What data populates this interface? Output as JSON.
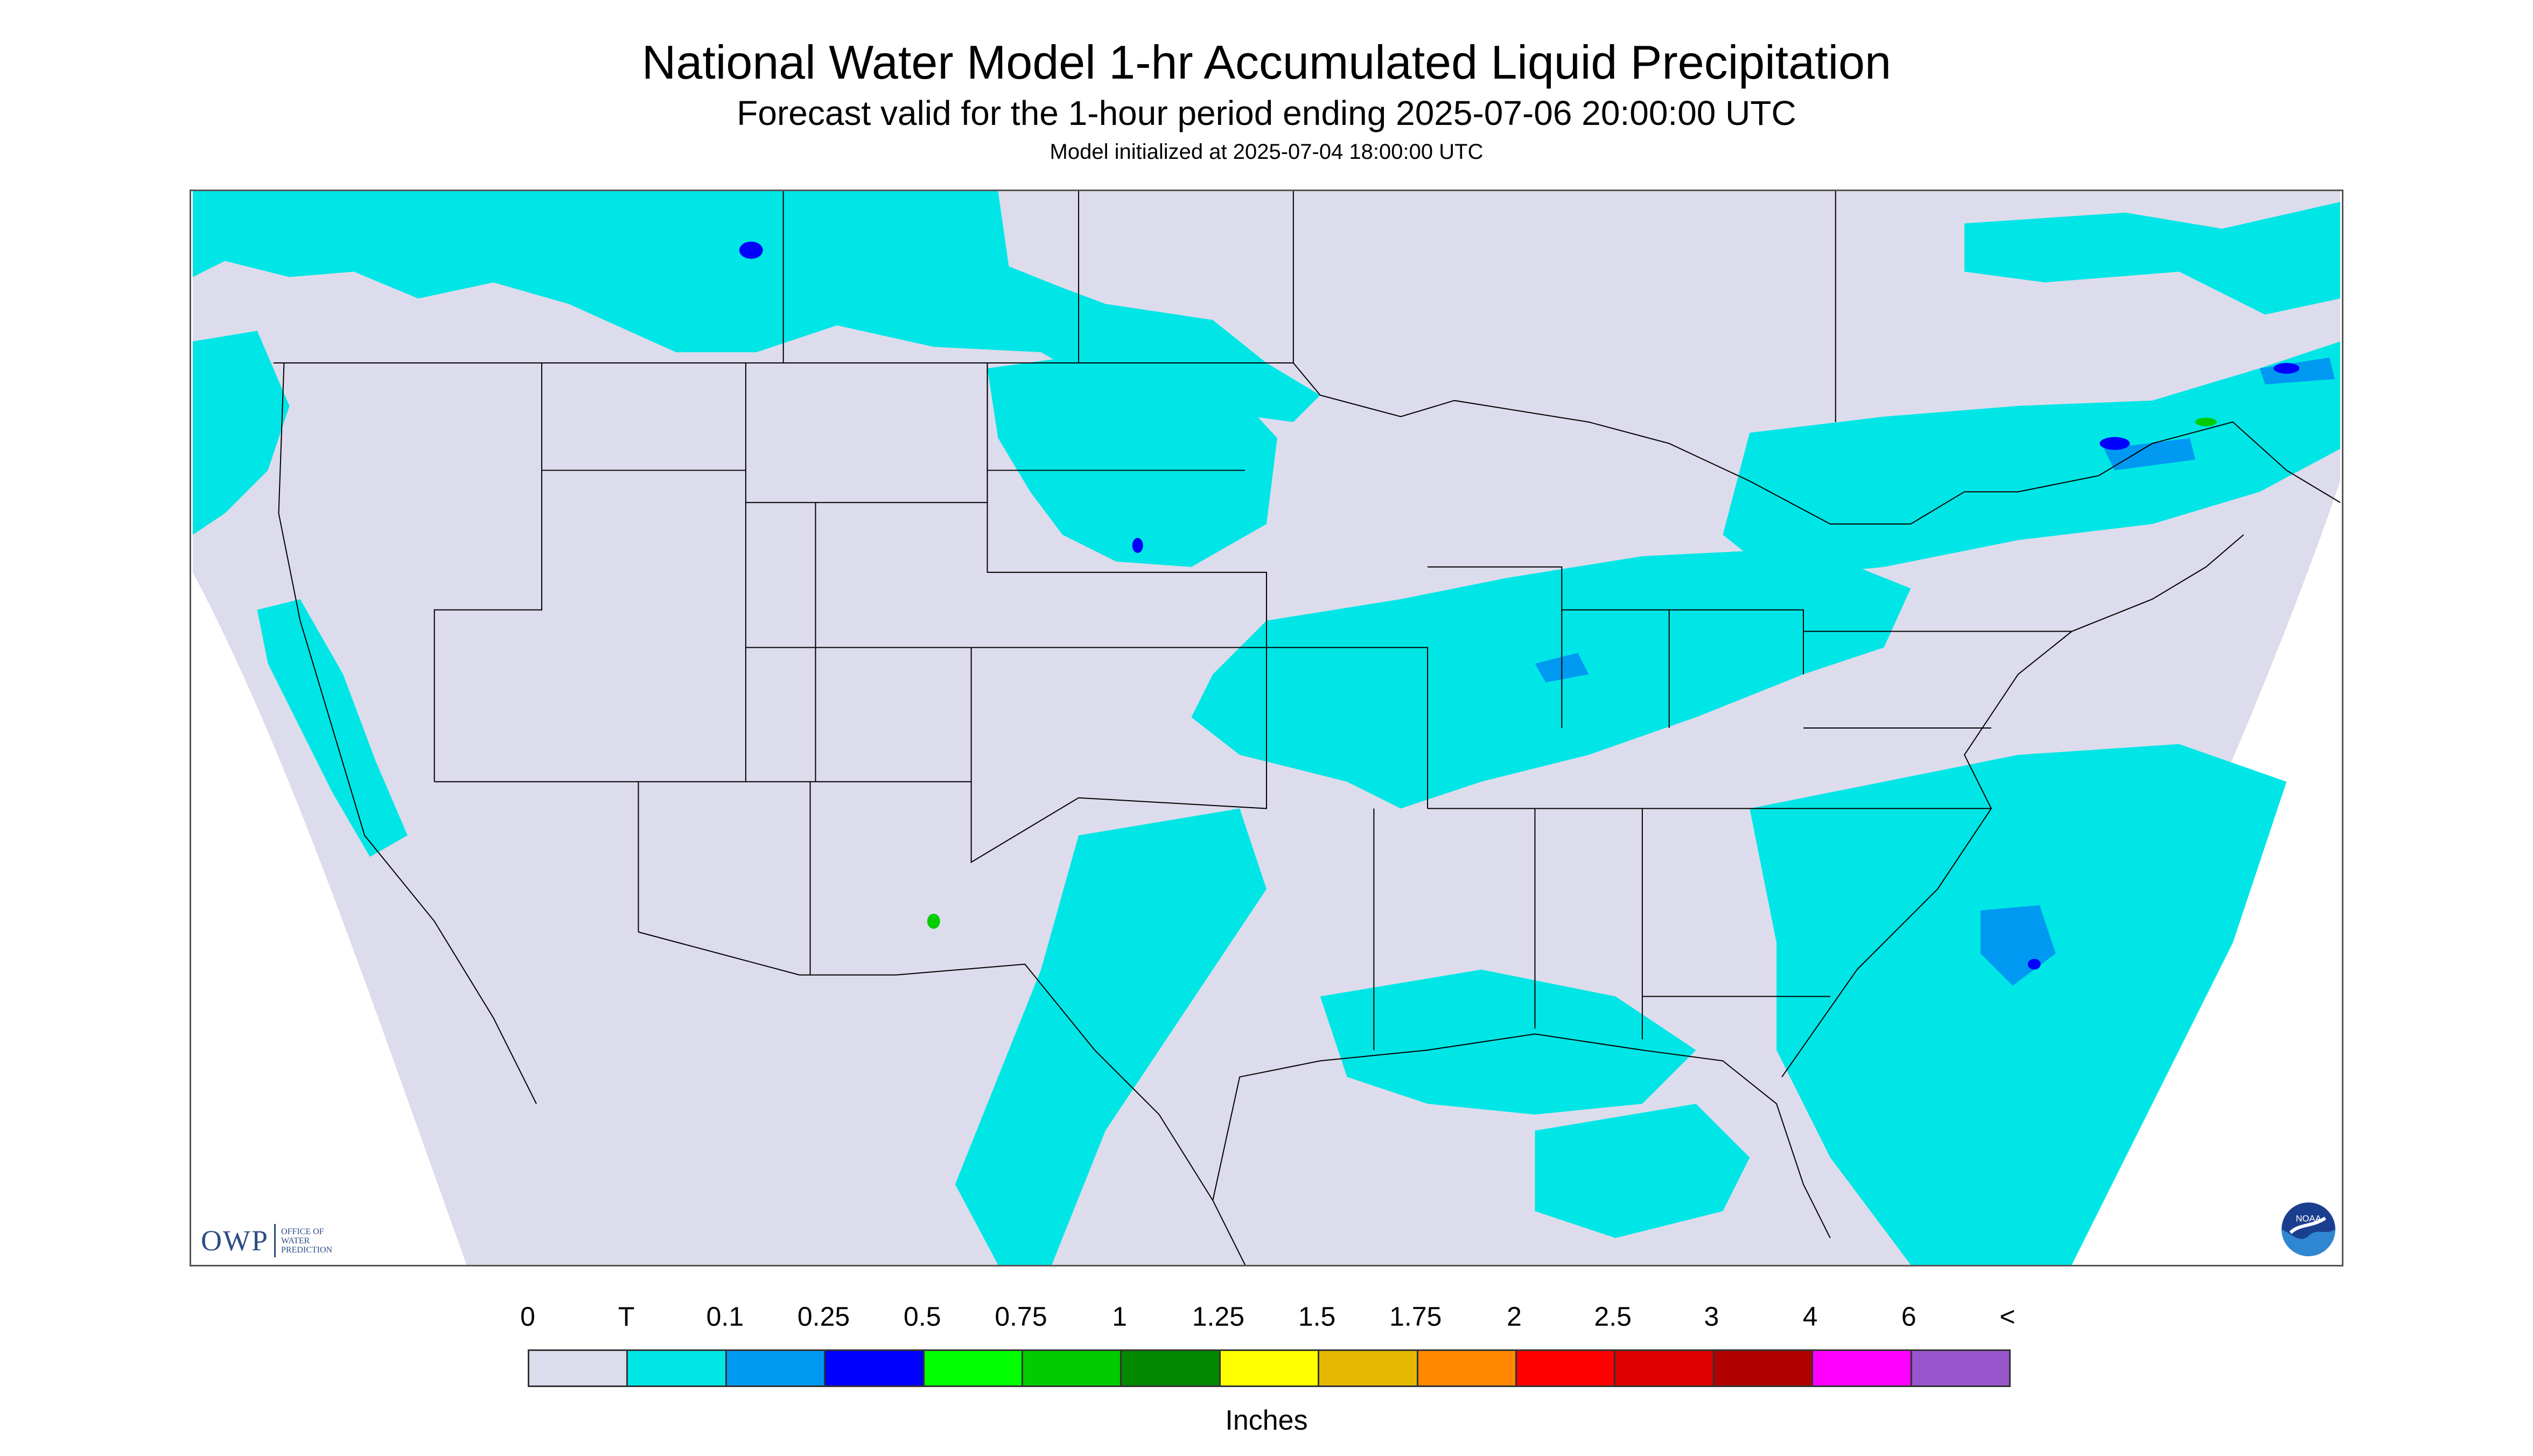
{
  "header": {
    "title": "National Water Model 1-hr Accumulated Liquid Precipitation",
    "subtitle": "Forecast valid for the 1-hour period ending 2025-07-06 20:00:00 UTC",
    "initialized": "Model initialized at 2025-07-04 18:00:00 UTC"
  },
  "map": {
    "domain_color": "#dcdcec",
    "boundary_color": "#000000",
    "precip_light_color": "#00e6e6",
    "precip_mid_color": "#0099f2",
    "precip_heavy_color": "#0000ff",
    "precip_green_color": "#00cc00"
  },
  "logos": {
    "owp_mark": "OWP",
    "owp_text": [
      "OFFICE OF",
      "WATER",
      "PREDICTION"
    ],
    "noaa_icon": "noaa-logo-icon",
    "noaa_text": "NOAA"
  },
  "legend": {
    "labels": [
      "0",
      "T",
      "0.1",
      "0.25",
      "0.5",
      "0.75",
      "1",
      "1.25",
      "1.5",
      "1.75",
      "2",
      "2.5",
      "3",
      "4",
      "6",
      "<"
    ],
    "colors": [
      "#dcdcec",
      "#00e6e6",
      "#0099f2",
      "#0000ff",
      "#00ff00",
      "#00cc00",
      "#008800",
      "#ffff00",
      "#e6b800",
      "#ff8800",
      "#ff0000",
      "#dd0000",
      "#b00000",
      "#ff00ff",
      "#9955cc"
    ],
    "units": "Inches"
  }
}
